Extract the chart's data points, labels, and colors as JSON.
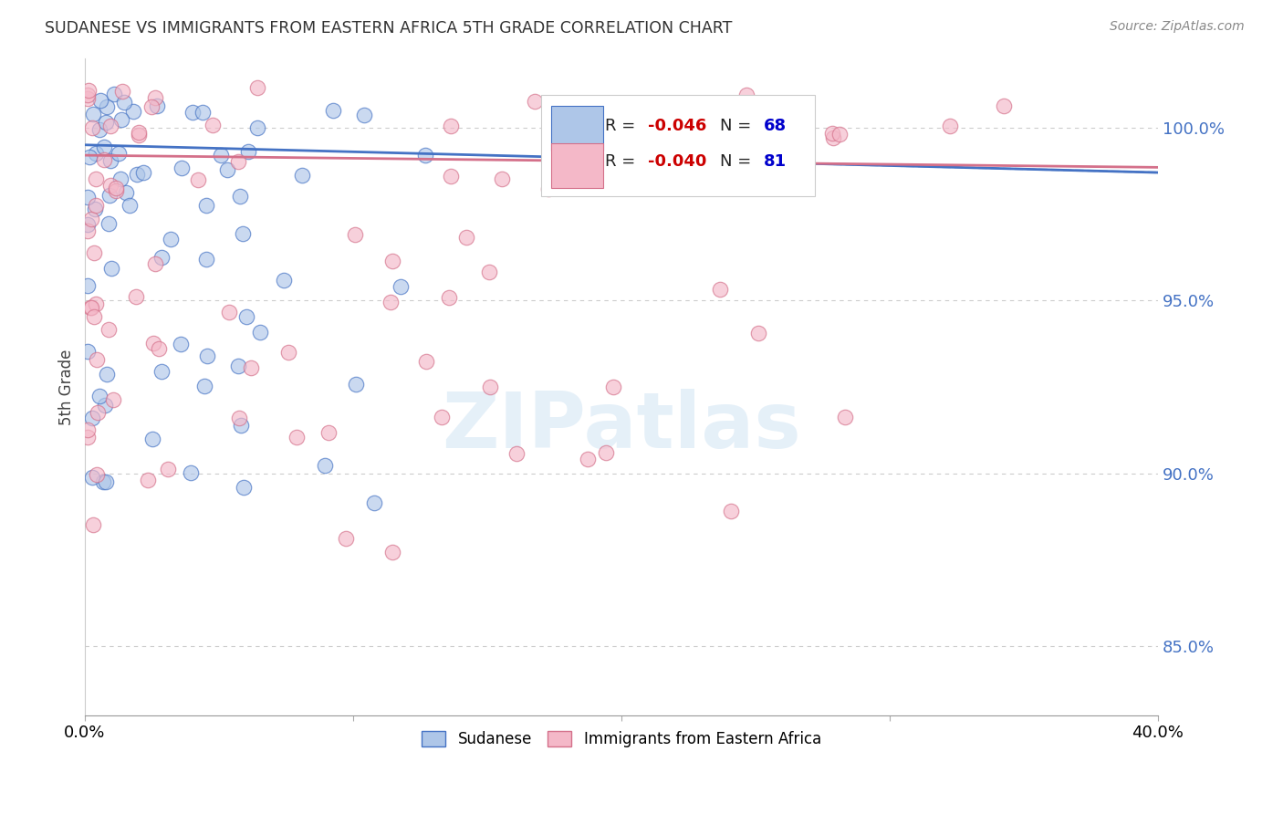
{
  "title": "SUDANESE VS IMMIGRANTS FROM EASTERN AFRICA 5TH GRADE CORRELATION CHART",
  "source": "Source: ZipAtlas.com",
  "ylabel": "5th Grade",
  "xlim": [
    0.0,
    0.4
  ],
  "ylim": [
    83.0,
    102.0
  ],
  "yticks": [
    85.0,
    90.0,
    95.0,
    100.0
  ],
  "blue_R": -0.046,
  "blue_N": 68,
  "pink_R": -0.04,
  "pink_N": 81,
  "blue_fill": "#aec6e8",
  "pink_fill": "#f4b8c8",
  "blue_edge": "#4472c4",
  "pink_edge": "#d4708a",
  "blue_line": "#4472c4",
  "pink_line": "#d4708a",
  "dashed_line": "#aec6e8",
  "watermark_color": "#d0e4f4",
  "grid_color": "#cccccc"
}
